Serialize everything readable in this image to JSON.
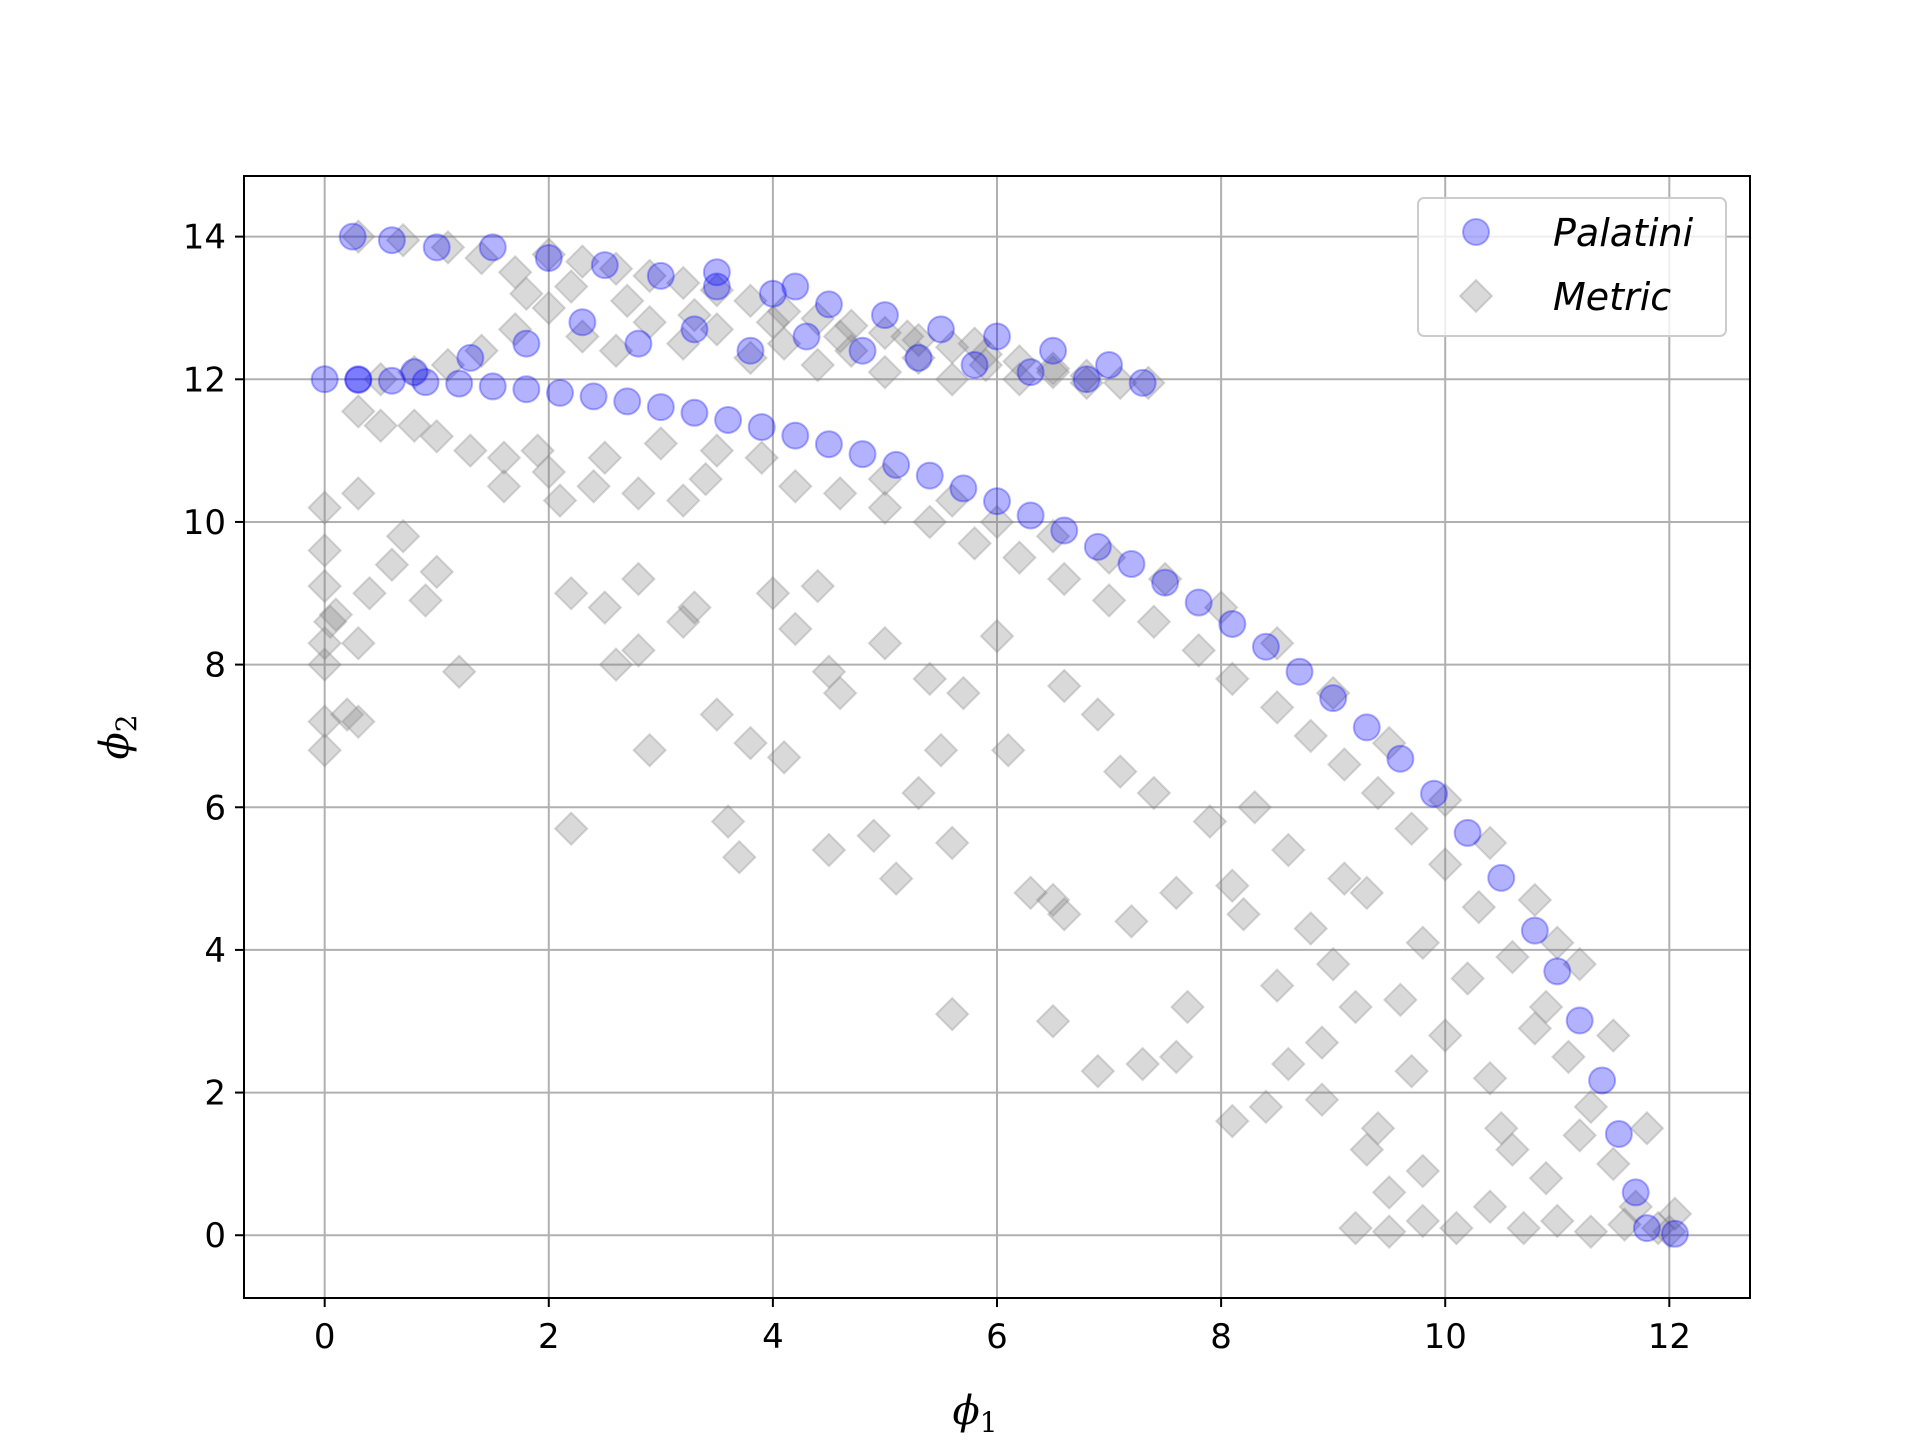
{
  "chart_data": {
    "type": "scatter",
    "title": "",
    "xlabel": "ϕ",
    "xlabel_sub": "1",
    "ylabel": "ϕ",
    "ylabel_sub": "2",
    "xlim": [
      -0.72,
      12.72
    ],
    "ylim": [
      -0.88,
      14.85
    ],
    "xticks": [
      0,
      2,
      4,
      6,
      8,
      10,
      12
    ],
    "yticks": [
      0,
      2,
      4,
      6,
      8,
      10,
      12,
      14
    ],
    "xtick_labels": [
      "0",
      "2",
      "4",
      "6",
      "8",
      "10",
      "12"
    ],
    "ytick_labels": [
      "0",
      "2",
      "4",
      "6",
      "8",
      "10",
      "12",
      "14"
    ],
    "grid": true,
    "legend_position": "top-right",
    "series": [
      {
        "name": "Palatini",
        "marker": "circle",
        "color": "#0000ff",
        "opacity": 0.3,
        "points": [
          [
            0.0,
            12.0
          ],
          [
            0.3,
            11.99
          ],
          [
            0.6,
            11.98
          ],
          [
            0.9,
            11.96
          ],
          [
            1.2,
            11.94
          ],
          [
            1.5,
            11.9
          ],
          [
            1.8,
            11.86
          ],
          [
            2.1,
            11.81
          ],
          [
            2.4,
            11.76
          ],
          [
            2.7,
            11.69
          ],
          [
            3.0,
            11.61
          ],
          [
            3.3,
            11.53
          ],
          [
            3.6,
            11.43
          ],
          [
            3.9,
            11.33
          ],
          [
            4.2,
            11.21
          ],
          [
            4.5,
            11.09
          ],
          [
            4.8,
            10.95
          ],
          [
            5.1,
            10.8
          ],
          [
            5.4,
            10.65
          ],
          [
            5.7,
            10.47
          ],
          [
            6.0,
            10.29
          ],
          [
            6.3,
            10.09
          ],
          [
            6.6,
            9.88
          ],
          [
            6.9,
            9.65
          ],
          [
            7.2,
            9.41
          ],
          [
            7.5,
            9.15
          ],
          [
            7.8,
            8.87
          ],
          [
            8.1,
            8.57
          ],
          [
            8.4,
            8.25
          ],
          [
            8.7,
            7.9
          ],
          [
            9.0,
            7.53
          ],
          [
            9.3,
            7.12
          ],
          [
            9.6,
            6.68
          ],
          [
            9.9,
            6.19
          ],
          [
            10.2,
            5.64
          ],
          [
            10.5,
            5.01
          ],
          [
            10.8,
            4.27
          ],
          [
            11.0,
            3.7
          ],
          [
            11.2,
            3.01
          ],
          [
            11.4,
            2.17
          ],
          [
            11.55,
            1.42
          ],
          [
            11.7,
            0.6
          ],
          [
            11.8,
            0.1
          ],
          [
            12.05,
            0.02
          ],
          [
            0.25,
            14.0
          ],
          [
            0.6,
            13.95
          ],
          [
            1.0,
            13.85
          ],
          [
            1.5,
            13.85
          ],
          [
            2.0,
            13.7
          ],
          [
            2.5,
            13.6
          ],
          [
            3.0,
            13.45
          ],
          [
            3.5,
            13.3
          ],
          [
            4.0,
            13.2
          ],
          [
            4.5,
            13.05
          ],
          [
            5.0,
            12.9
          ],
          [
            5.5,
            12.7
          ],
          [
            6.0,
            12.6
          ],
          [
            6.5,
            12.4
          ],
          [
            7.0,
            12.2
          ],
          [
            7.3,
            11.95
          ],
          [
            0.3,
            12.0
          ],
          [
            0.8,
            12.1
          ],
          [
            1.3,
            12.3
          ],
          [
            1.8,
            12.5
          ],
          [
            2.3,
            12.8
          ],
          [
            2.8,
            12.5
          ],
          [
            3.3,
            12.7
          ],
          [
            3.8,
            12.4
          ],
          [
            4.3,
            12.6
          ],
          [
            4.8,
            12.4
          ],
          [
            5.3,
            12.3
          ],
          [
            5.8,
            12.2
          ],
          [
            6.3,
            12.1
          ],
          [
            6.8,
            12.0
          ],
          [
            3.5,
            13.5
          ],
          [
            4.2,
            13.3
          ]
        ]
      },
      {
        "name": "Metric",
        "marker": "diamond",
        "color": "#808080",
        "opacity": 0.3,
        "points": [
          [
            0.3,
            14.0
          ],
          [
            0.7,
            13.95
          ],
          [
            1.1,
            13.85
          ],
          [
            1.4,
            13.7
          ],
          [
            1.7,
            13.5
          ],
          [
            2.0,
            13.75
          ],
          [
            2.3,
            13.65
          ],
          [
            2.6,
            13.55
          ],
          [
            2.9,
            13.45
          ],
          [
            3.2,
            13.35
          ],
          [
            3.5,
            13.25
          ],
          [
            3.8,
            13.1
          ],
          [
            4.1,
            12.95
          ],
          [
            4.4,
            12.85
          ],
          [
            4.7,
            12.75
          ],
          [
            5.0,
            12.65
          ],
          [
            5.3,
            12.55
          ],
          [
            5.6,
            12.45
          ],
          [
            5.9,
            12.35
          ],
          [
            6.2,
            12.25
          ],
          [
            6.5,
            12.15
          ],
          [
            6.8,
            12.05
          ],
          [
            7.1,
            11.95
          ],
          [
            7.35,
            11.95
          ],
          [
            0.5,
            12.0
          ],
          [
            0.8,
            12.1
          ],
          [
            1.1,
            12.2
          ],
          [
            1.4,
            12.4
          ],
          [
            1.7,
            12.7
          ],
          [
            2.0,
            13.0
          ],
          [
            2.3,
            12.6
          ],
          [
            2.6,
            12.4
          ],
          [
            2.9,
            12.8
          ],
          [
            3.2,
            12.5
          ],
          [
            3.5,
            12.7
          ],
          [
            3.8,
            12.3
          ],
          [
            4.1,
            12.5
          ],
          [
            4.4,
            12.2
          ],
          [
            4.7,
            12.4
          ],
          [
            5.0,
            12.1
          ],
          [
            5.3,
            12.3
          ],
          [
            5.6,
            12.0
          ],
          [
            5.9,
            12.2
          ],
          [
            6.2,
            12.0
          ],
          [
            6.5,
            12.1
          ],
          [
            6.8,
            11.95
          ],
          [
            1.8,
            13.2
          ],
          [
            2.2,
            13.3
          ],
          [
            2.7,
            13.1
          ],
          [
            3.3,
            12.9
          ],
          [
            4.0,
            12.8
          ],
          [
            4.6,
            12.6
          ],
          [
            5.2,
            12.6
          ],
          [
            5.8,
            12.5
          ],
          [
            0.3,
            11.55
          ],
          [
            0.5,
            11.35
          ],
          [
            0.8,
            11.35
          ],
          [
            1.0,
            11.2
          ],
          [
            1.3,
            11.0
          ],
          [
            1.6,
            10.9
          ],
          [
            2.0,
            10.7
          ],
          [
            2.4,
            10.5
          ],
          [
            2.8,
            10.4
          ],
          [
            3.2,
            10.3
          ],
          [
            3.5,
            11.0
          ],
          [
            3.9,
            10.9
          ],
          [
            4.2,
            10.5
          ],
          [
            4.6,
            10.4
          ],
          [
            5.0,
            10.2
          ],
          [
            5.4,
            10.0
          ],
          [
            5.8,
            9.7
          ],
          [
            6.2,
            9.5
          ],
          [
            6.6,
            9.2
          ],
          [
            7.0,
            8.9
          ],
          [
            7.4,
            8.6
          ],
          [
            7.8,
            8.2
          ],
          [
            8.1,
            7.8
          ],
          [
            8.5,
            7.4
          ],
          [
            8.8,
            7.0
          ],
          [
            9.1,
            6.6
          ],
          [
            9.4,
            6.2
          ],
          [
            9.7,
            5.7
          ],
          [
            10.0,
            5.2
          ],
          [
            10.3,
            4.6
          ],
          [
            10.6,
            3.9
          ],
          [
            10.9,
            3.2
          ],
          [
            11.1,
            2.5
          ],
          [
            11.3,
            1.8
          ],
          [
            11.5,
            1.0
          ],
          [
            11.7,
            0.4
          ],
          [
            11.9,
            0.1
          ],
          [
            12.0,
            0.05
          ],
          [
            5.0,
            10.6
          ],
          [
            5.6,
            10.3
          ],
          [
            6.0,
            10.0
          ],
          [
            6.5,
            9.8
          ],
          [
            7.0,
            9.5
          ],
          [
            7.5,
            9.2
          ],
          [
            8.0,
            8.8
          ],
          [
            8.5,
            8.3
          ],
          [
            9.0,
            7.6
          ],
          [
            9.5,
            6.9
          ],
          [
            10.0,
            6.1
          ],
          [
            10.4,
            5.5
          ],
          [
            10.8,
            4.7
          ],
          [
            11.2,
            3.8
          ],
          [
            11.5,
            2.8
          ],
          [
            11.8,
            1.5
          ],
          [
            12.05,
            0.3
          ],
          [
            0.0,
            10.2
          ],
          [
            0.0,
            9.6
          ],
          [
            0.0,
            9.1
          ],
          [
            0.05,
            8.6
          ],
          [
            0.0,
            8.3
          ],
          [
            0.0,
            8.0
          ],
          [
            0.1,
            8.7
          ],
          [
            0.3,
            8.3
          ],
          [
            0.4,
            9.0
          ],
          [
            0.6,
            9.4
          ],
          [
            0.7,
            9.8
          ],
          [
            0.9,
            8.9
          ],
          [
            1.0,
            9.3
          ],
          [
            0.3,
            10.4
          ],
          [
            0.2,
            7.3
          ],
          [
            0.0,
            7.2
          ],
          [
            0.3,
            7.2
          ],
          [
            0.0,
            6.8
          ],
          [
            1.2,
            7.9
          ],
          [
            1.6,
            10.5
          ],
          [
            2.1,
            10.3
          ],
          [
            1.9,
            11.0
          ],
          [
            2.5,
            10.9
          ],
          [
            3.0,
            11.1
          ],
          [
            3.4,
            10.6
          ],
          [
            2.2,
            9.0
          ],
          [
            2.5,
            8.8
          ],
          [
            2.6,
            8.0
          ],
          [
            2.8,
            9.2
          ],
          [
            3.3,
            8.8
          ],
          [
            3.2,
            8.6
          ],
          [
            2.8,
            8.2
          ],
          [
            3.5,
            7.3
          ],
          [
            2.9,
            6.8
          ],
          [
            3.8,
            6.9
          ],
          [
            4.1,
            6.7
          ],
          [
            3.6,
            5.8
          ],
          [
            3.7,
            5.3
          ],
          [
            2.2,
            5.7
          ],
          [
            4.0,
            9.0
          ],
          [
            4.2,
            8.5
          ],
          [
            4.4,
            9.1
          ],
          [
            4.5,
            7.9
          ],
          [
            4.6,
            7.6
          ],
          [
            4.5,
            5.4
          ],
          [
            4.9,
            5.6
          ],
          [
            5.1,
            5.0
          ],
          [
            5.3,
            6.2
          ],
          [
            5.5,
            6.8
          ],
          [
            5.6,
            5.5
          ],
          [
            5.6,
            3.1
          ],
          [
            5.0,
            8.3
          ],
          [
            5.4,
            7.8
          ],
          [
            5.7,
            7.6
          ],
          [
            6.0,
            8.4
          ],
          [
            6.1,
            6.8
          ],
          [
            6.3,
            4.8
          ],
          [
            6.5,
            4.7
          ],
          [
            6.6,
            4.5
          ],
          [
            6.5,
            3.0
          ],
          [
            6.9,
            2.3
          ],
          [
            7.3,
            2.4
          ],
          [
            7.6,
            2.5
          ],
          [
            7.7,
            3.2
          ],
          [
            6.6,
            7.7
          ],
          [
            6.9,
            7.3
          ],
          [
            7.1,
            6.5
          ],
          [
            7.4,
            6.2
          ],
          [
            7.2,
            4.4
          ],
          [
            7.6,
            4.8
          ],
          [
            7.9,
            5.8
          ],
          [
            8.1,
            4.9
          ],
          [
            8.2,
            4.5
          ],
          [
            8.3,
            6.0
          ],
          [
            8.5,
            3.5
          ],
          [
            8.6,
            2.4
          ],
          [
            8.6,
            5.4
          ],
          [
            8.8,
            4.3
          ],
          [
            8.9,
            2.7
          ],
          [
            9.0,
            3.8
          ],
          [
            9.1,
            5.0
          ],
          [
            9.2,
            3.2
          ],
          [
            9.3,
            4.8
          ],
          [
            9.4,
            1.5
          ],
          [
            9.6,
            3.3
          ],
          [
            9.7,
            2.3
          ],
          [
            9.8,
            4.1
          ],
          [
            10.0,
            2.8
          ],
          [
            10.2,
            3.6
          ],
          [
            10.4,
            2.2
          ],
          [
            10.6,
            1.2
          ],
          [
            8.1,
            1.6
          ],
          [
            8.4,
            1.8
          ],
          [
            8.9,
            1.9
          ],
          [
            9.3,
            1.2
          ],
          [
            9.5,
            0.6
          ],
          [
            9.8,
            0.9
          ],
          [
            9.2,
            0.1
          ],
          [
            9.5,
            0.05
          ],
          [
            9.8,
            0.2
          ],
          [
            10.1,
            0.1
          ],
          [
            10.4,
            0.4
          ],
          [
            10.7,
            0.1
          ],
          [
            11.0,
            0.2
          ],
          [
            11.3,
            0.05
          ],
          [
            11.6,
            0.15
          ],
          [
            10.9,
            0.8
          ],
          [
            11.2,
            1.4
          ],
          [
            10.5,
            1.5
          ],
          [
            10.8,
            2.9
          ],
          [
            11.0,
            4.1
          ]
        ]
      }
    ]
  }
}
